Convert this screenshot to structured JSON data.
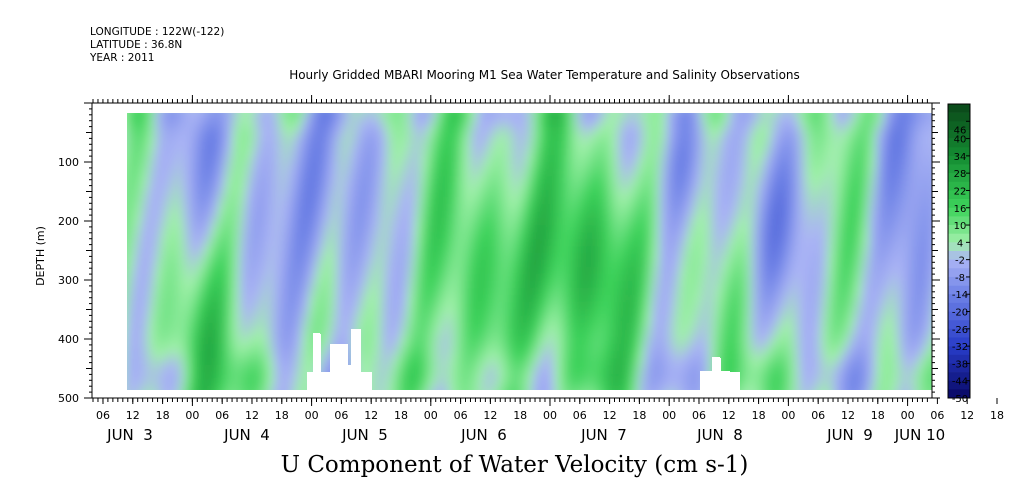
{
  "header": {
    "longitude": "LONGITUDE : 122W(-122)",
    "latitude": "LATITUDE : 36.8N",
    "year": "YEAR : 2011"
  },
  "colors": {
    "strong_negative": "#0a0a78",
    "negative": "#4a5ad8",
    "weak_negative": "#a8b0f0",
    "weak_positive": "#a0f0a8",
    "positive": "#30c850",
    "strong_positive": "#105a20"
  },
  "chart_data": {
    "type": "heatmap",
    "title": "Hourly Gridded MBARI Mooring M1 Sea Water Temperature and Salinity Observations",
    "xlabel": "U Component of Water Velocity (cm s-1)",
    "ylabel": "DEPTH (m)",
    "ylim": [
      500,
      0
    ],
    "y_ticks": [
      100,
      200,
      300,
      400,
      500
    ],
    "x_tick_hours": [
      "06",
      "12",
      "18",
      "00",
      "06",
      "12",
      "18",
      "00",
      "06",
      "12",
      "18",
      "00",
      "06",
      "12",
      "18",
      "00",
      "06",
      "12",
      "18",
      "00",
      "06",
      "12",
      "18",
      "00",
      "06",
      "12",
      "18",
      "00",
      "06",
      "12",
      "18",
      "00"
    ],
    "x_day_labels": [
      "JUN  3",
      "JUN  4",
      "JUN  5",
      "JUN  6",
      "JUN  7",
      "JUN  8",
      "JUN  9",
      "JUN 10"
    ],
    "colorbar": {
      "labels": [
        "46",
        "40",
        "34",
        "28",
        "22",
        "16",
        "10",
        "4",
        "-2",
        "-8",
        "-14",
        "-20",
        "-26",
        "-32",
        "-38",
        "-44",
        "-50"
      ],
      "range": [
        -50,
        52
      ]
    },
    "grid": false,
    "legend": "colorbar-right"
  }
}
